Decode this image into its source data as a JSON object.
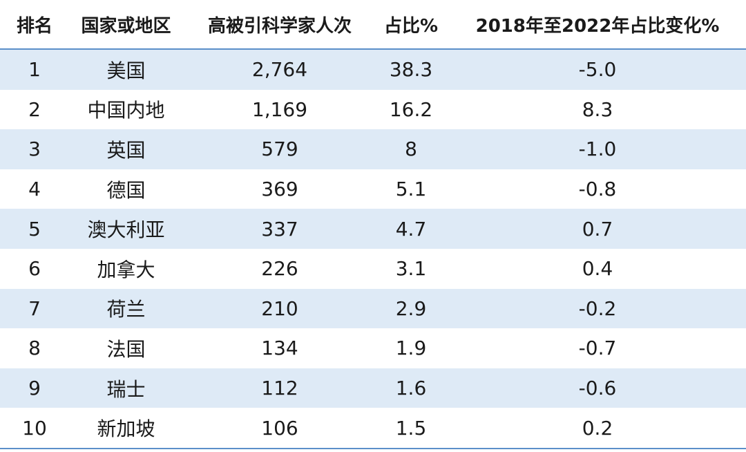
{
  "header": {
    "rank": "排名",
    "region": "国家或地区",
    "count": "高被引科学家人次",
    "share": "占比%",
    "change": "2018年至2022年占比变化%"
  },
  "rows": [
    {
      "rank": "1",
      "region": "美国",
      "count": "2,764",
      "share": "38.3",
      "change": "-5.0"
    },
    {
      "rank": "2",
      "region": "中国内地",
      "count": "1,169",
      "share": "16.2",
      "change": "8.3"
    },
    {
      "rank": "3",
      "region": "英国",
      "count": "579",
      "share": "8",
      "change": "-1.0"
    },
    {
      "rank": "4",
      "region": "德国",
      "count": "369",
      "share": "5.1",
      "change": "-0.8"
    },
    {
      "rank": "5",
      "region": "澳大利亚",
      "count": "337",
      "share": "4.7",
      "change": "0.7"
    },
    {
      "rank": "6",
      "region": "加拿大",
      "count": "226",
      "share": "3.1",
      "change": "0.4"
    },
    {
      "rank": "7",
      "region": "荷兰",
      "count": "210",
      "share": "2.9",
      "change": "-0.2"
    },
    {
      "rank": "8",
      "region": "法国",
      "count": "134",
      "share": "1.9",
      "change": "-0.7"
    },
    {
      "rank": "9",
      "region": "瑞士",
      "count": "112",
      "share": "1.6",
      "change": "-0.6"
    },
    {
      "rank": "10",
      "region": "新加坡",
      "count": "106",
      "share": "1.5",
      "change": "0.2"
    }
  ],
  "colors": {
    "rule": "#5b8fc9",
    "shade": "#deeaf6"
  }
}
